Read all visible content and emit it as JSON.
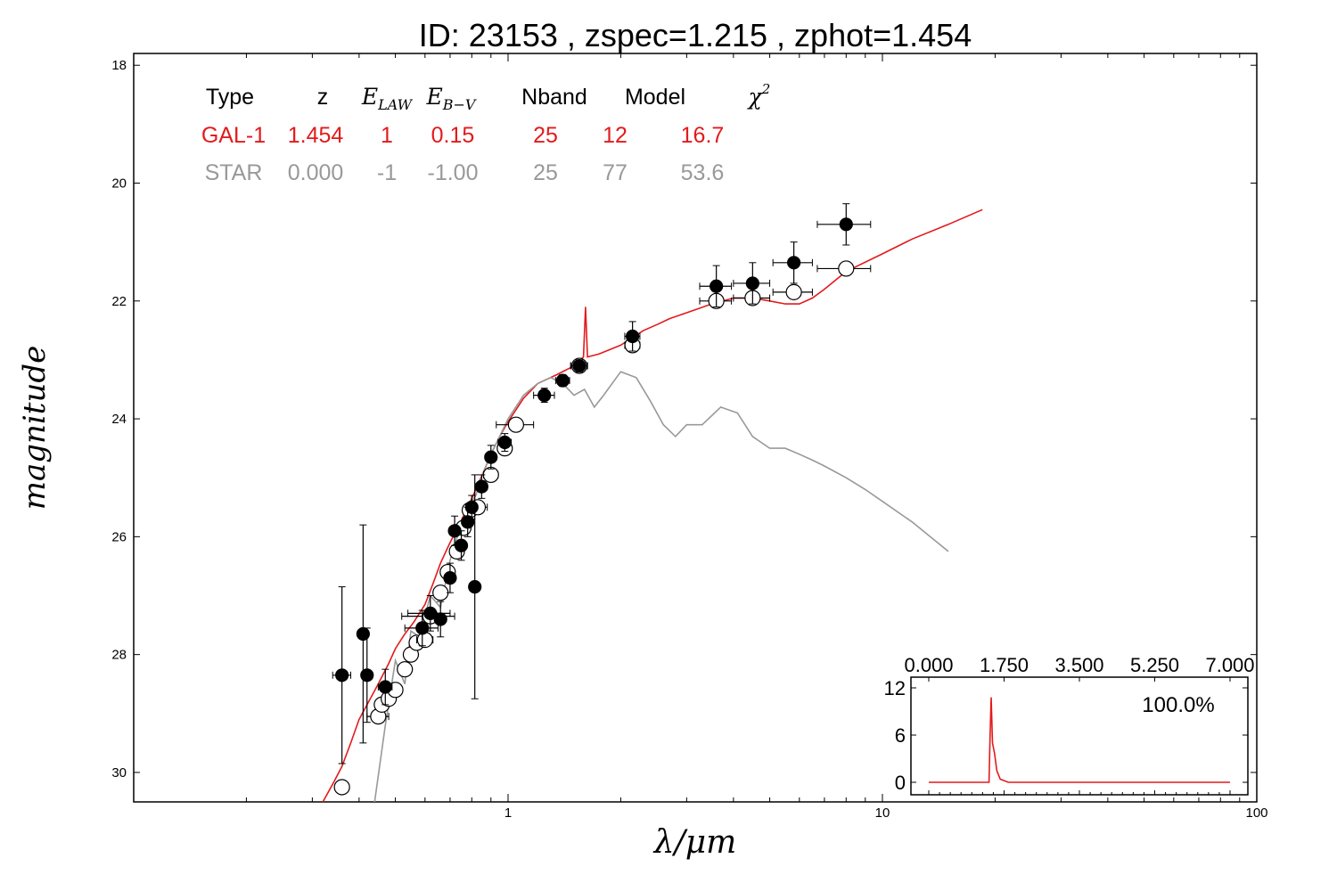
{
  "title": "ID:  23153 , zspec=1.215 , zphot=1.454",
  "colors": {
    "gal": "#e31a1c",
    "star": "#999999",
    "axes": "#000000"
  },
  "legend_table": {
    "headers": [
      {
        "text": "Type",
        "math": false
      },
      {
        "text": "z",
        "math": false
      },
      {
        "text": "E",
        "sub": "LAW",
        "math": true
      },
      {
        "text": "E",
        "sub": "B−V",
        "math": true
      },
      {
        "text": "Nband",
        "math": false
      },
      {
        "text": "Model",
        "math": false
      },
      {
        "text": "χ",
        "sup": "2",
        "math": true
      }
    ],
    "rows": [
      {
        "key": "gal",
        "cells": [
          "GAL-1",
          "1.454",
          "1",
          "0.15",
          "25",
          "12",
          "16.7"
        ]
      },
      {
        "key": "star",
        "cells": [
          "STAR",
          "0.000",
          "-1",
          "-1.00",
          "25",
          "77",
          "53.6"
        ]
      }
    ]
  },
  "chart_data": [
    {
      "type": "scatter",
      "xlabel": "λ/μm",
      "ylabel": "magnitude",
      "xscale": "log",
      "xlim": [
        0.1,
        100
      ],
      "ylim": [
        30.5,
        17.8
      ],
      "y_inverted": true,
      "xticks": [
        {
          "value": 1,
          "label": "1"
        },
        {
          "value": 10,
          "label": "10"
        },
        {
          "value": 100,
          "label": "100"
        }
      ],
      "yticks": [
        18,
        20,
        22,
        24,
        26,
        28,
        30
      ],
      "series": [
        {
          "kind": "observed",
          "marker": "filled-circle",
          "points": [
            {
              "x": 0.36,
              "y": 28.35,
              "xerr": 0.02,
              "yerr": 1.5
            },
            {
              "x": 0.41,
              "y": 27.65,
              "xerr": 0.01,
              "yerr": 1.85
            },
            {
              "x": 0.42,
              "y": 28.35,
              "xerr": 0.01,
              "yerr": 0.8
            },
            {
              "x": 0.47,
              "y": 28.55,
              "xerr": 0.02,
              "yerr": 0.3
            },
            {
              "x": 0.59,
              "y": 27.55,
              "xerr": 0.06,
              "yerr": 0.3
            },
            {
              "x": 0.62,
              "y": 27.3,
              "xerr": 0.08,
              "yerr": 0.3
            },
            {
              "x": 0.66,
              "y": 27.4,
              "xerr": 0.02,
              "yerr": 0.3
            },
            {
              "x": 0.7,
              "y": 26.7,
              "xerr": 0.02,
              "yerr": 0.25
            },
            {
              "x": 0.72,
              "y": 25.9,
              "xerr": 0.02,
              "yerr": 0.25
            },
            {
              "x": 0.75,
              "y": 26.15,
              "xerr": 0.02,
              "yerr": 0.25
            },
            {
              "x": 0.78,
              "y": 25.75,
              "xerr": 0.02,
              "yerr": 0.25
            },
            {
              "x": 0.8,
              "y": 25.5,
              "xerr": 0.02,
              "yerr": 0.2
            },
            {
              "x": 0.815,
              "y": 26.85,
              "xerr": 0.02,
              "yerr": 1.9
            },
            {
              "x": 0.85,
              "y": 25.15,
              "xerr": 0.03,
              "yerr": 0.2
            },
            {
              "x": 0.9,
              "y": 24.65,
              "xerr": 0.03,
              "yerr": 0.2
            },
            {
              "x": 0.98,
              "y": 24.4,
              "xerr": 0.04,
              "yerr": 0.15
            },
            {
              "x": 1.25,
              "y": 23.6,
              "xerr": 0.08,
              "yerr": 0.12
            },
            {
              "x": 1.4,
              "y": 23.35,
              "xerr": 0.06,
              "yerr": 0.1
            },
            {
              "x": 1.55,
              "y": 23.1,
              "xerr": 0.08,
              "yerr": 0.1
            },
            {
              "x": 2.15,
              "y": 22.6,
              "xerr": 0.1,
              "yerr": 0.25
            },
            {
              "x": 3.6,
              "y": 21.75,
              "xerr": 0.35,
              "yerr": 0.35
            },
            {
              "x": 4.5,
              "y": 21.7,
              "xerr": 0.5,
              "yerr": 0.35
            },
            {
              "x": 5.8,
              "y": 21.35,
              "xerr": 0.7,
              "yerr": 0.35
            },
            {
              "x": 8.0,
              "y": 20.7,
              "xerr": 1.3,
              "yerr": 0.35
            }
          ]
        },
        {
          "kind": "model",
          "marker": "open-circle",
          "points": [
            {
              "x": 0.36,
              "y": 30.25,
              "xerr": 0.01
            },
            {
              "x": 0.45,
              "y": 29.05,
              "xerr": 0.03
            },
            {
              "x": 0.46,
              "y": 28.85,
              "xerr": 0.01
            },
            {
              "x": 0.48,
              "y": 28.75,
              "xerr": 0.01
            },
            {
              "x": 0.5,
              "y": 28.6,
              "xerr": 0.01
            },
            {
              "x": 0.53,
              "y": 28.25,
              "xerr": 0.02
            },
            {
              "x": 0.55,
              "y": 28.0,
              "xerr": 0.02
            },
            {
              "x": 0.57,
              "y": 27.8,
              "xerr": 0.02
            },
            {
              "x": 0.6,
              "y": 27.75,
              "xerr": 0.03
            },
            {
              "x": 0.62,
              "y": 27.35,
              "xerr": 0.1
            },
            {
              "x": 0.66,
              "y": 26.95,
              "xerr": 0.02
            },
            {
              "x": 0.69,
              "y": 26.6,
              "xerr": 0.02
            },
            {
              "x": 0.73,
              "y": 26.25,
              "xerr": 0.02
            },
            {
              "x": 0.76,
              "y": 25.85,
              "xerr": 0.02
            },
            {
              "x": 0.79,
              "y": 25.55,
              "xerr": 0.02
            },
            {
              "x": 0.83,
              "y": 25.5,
              "xerr": 0.05
            },
            {
              "x": 0.9,
              "y": 24.95,
              "xerr": 0.04
            },
            {
              "x": 0.98,
              "y": 24.5,
              "xerr": 0.04
            },
            {
              "x": 1.05,
              "y": 24.1,
              "xerr": 0.12
            },
            {
              "x": 1.55,
              "y": 23.1,
              "xerr": 0.08
            },
            {
              "x": 2.15,
              "y": 22.75,
              "xerr": 0.1
            },
            {
              "x": 3.6,
              "y": 22.0,
              "xerr": 0.35
            },
            {
              "x": 4.5,
              "y": 21.95,
              "xerr": 0.5
            },
            {
              "x": 5.8,
              "y": 21.85,
              "xerr": 0.7
            },
            {
              "x": 8.0,
              "y": 21.45,
              "xerr": 1.3
            }
          ]
        },
        {
          "kind": "galaxy-template",
          "style": "line",
          "points": [
            [
              0.32,
              30.5
            ],
            [
              0.34,
              30.2
            ],
            [
              0.36,
              29.9
            ],
            [
              0.38,
              29.5
            ],
            [
              0.4,
              29.1
            ],
            [
              0.42,
              28.85
            ],
            [
              0.45,
              28.5
            ],
            [
              0.48,
              28.15
            ],
            [
              0.5,
              27.9
            ],
            [
              0.53,
              27.65
            ],
            [
              0.56,
              27.45
            ],
            [
              0.6,
              27.15
            ],
            [
              0.63,
              26.8
            ],
            [
              0.66,
              26.45
            ],
            [
              0.7,
              26.1
            ],
            [
              0.74,
              25.8
            ],
            [
              0.78,
              25.5
            ],
            [
              0.82,
              25.2
            ],
            [
              0.86,
              24.9
            ],
            [
              0.9,
              24.6
            ],
            [
              0.95,
              24.3
            ],
            [
              1.0,
              24.05
            ],
            [
              1.1,
              23.65
            ],
            [
              1.2,
              23.4
            ],
            [
              1.35,
              23.25
            ],
            [
              1.5,
              23.1
            ],
            [
              1.59,
              22.95
            ],
            [
              1.61,
              22.1
            ],
            [
              1.63,
              22.95
            ],
            [
              1.75,
              22.9
            ],
            [
              2.0,
              22.75
            ],
            [
              2.3,
              22.5
            ],
            [
              2.5,
              22.4
            ],
            [
              2.7,
              22.3
            ],
            [
              3.0,
              22.2
            ],
            [
              3.5,
              22.05
            ],
            [
              4.0,
              21.95
            ],
            [
              4.5,
              21.95
            ],
            [
              5.0,
              22.0
            ],
            [
              5.5,
              22.05
            ],
            [
              6.0,
              22.05
            ],
            [
              6.5,
              21.95
            ],
            [
              7.0,
              21.8
            ],
            [
              8.0,
              21.5
            ],
            [
              10.0,
              21.2
            ],
            [
              12.0,
              20.95
            ],
            [
              15.0,
              20.7
            ],
            [
              18.5,
              20.45
            ]
          ]
        },
        {
          "kind": "star-template",
          "style": "line",
          "points": [
            [
              0.44,
              30.5
            ],
            [
              0.47,
              29.2
            ],
            [
              0.5,
              28.1
            ],
            [
              0.53,
              28.5
            ],
            [
              0.55,
              27.6
            ],
            [
              0.58,
              27.7
            ],
            [
              0.62,
              27.0
            ],
            [
              0.66,
              27.2
            ],
            [
              0.7,
              26.4
            ],
            [
              0.74,
              25.9
            ],
            [
              0.78,
              25.5
            ],
            [
              0.82,
              25.3
            ],
            [
              0.86,
              24.9
            ],
            [
              0.9,
              24.6
            ],
            [
              0.95,
              24.3
            ],
            [
              1.0,
              24.0
            ],
            [
              1.1,
              23.6
            ],
            [
              1.2,
              23.4
            ],
            [
              1.3,
              23.3
            ],
            [
              1.4,
              23.4
            ],
            [
              1.5,
              23.6
            ],
            [
              1.6,
              23.5
            ],
            [
              1.7,
              23.8
            ],
            [
              1.8,
              23.6
            ],
            [
              2.0,
              23.2
            ],
            [
              2.2,
              23.3
            ],
            [
              2.4,
              23.7
            ],
            [
              2.6,
              24.1
            ],
            [
              2.8,
              24.3
            ],
            [
              3.0,
              24.1
            ],
            [
              3.3,
              24.1
            ],
            [
              3.7,
              23.8
            ],
            [
              4.1,
              23.9
            ],
            [
              4.5,
              24.3
            ],
            [
              5.0,
              24.5
            ],
            [
              5.5,
              24.5
            ],
            [
              6.0,
              24.6
            ],
            [
              6.5,
              24.7
            ],
            [
              7.0,
              24.8
            ],
            [
              8.0,
              25.0
            ],
            [
              9.0,
              25.2
            ],
            [
              10.0,
              25.4
            ],
            [
              12.0,
              25.75
            ],
            [
              15.0,
              26.25
            ]
          ]
        }
      ]
    },
    {
      "type": "line",
      "inset": true,
      "xlim": [
        0,
        7
      ],
      "ylim": [
        -1,
        13
      ],
      "xticks": [
        "0.000",
        "1.750",
        "3.500",
        "5.250",
        "7.000"
      ],
      "yticks": [
        0,
        6,
        12
      ],
      "annotation": "100.0%",
      "series": [
        {
          "points": [
            [
              0.0,
              0.0
            ],
            [
              1.4,
              0.0
            ],
            [
              1.42,
              5.0
            ],
            [
              1.45,
              10.8
            ],
            [
              1.48,
              5.0
            ],
            [
              1.53,
              3.6
            ],
            [
              1.58,
              1.5
            ],
            [
              1.66,
              0.4
            ],
            [
              1.85,
              0.0
            ],
            [
              7.0,
              0.0
            ]
          ]
        }
      ]
    }
  ]
}
